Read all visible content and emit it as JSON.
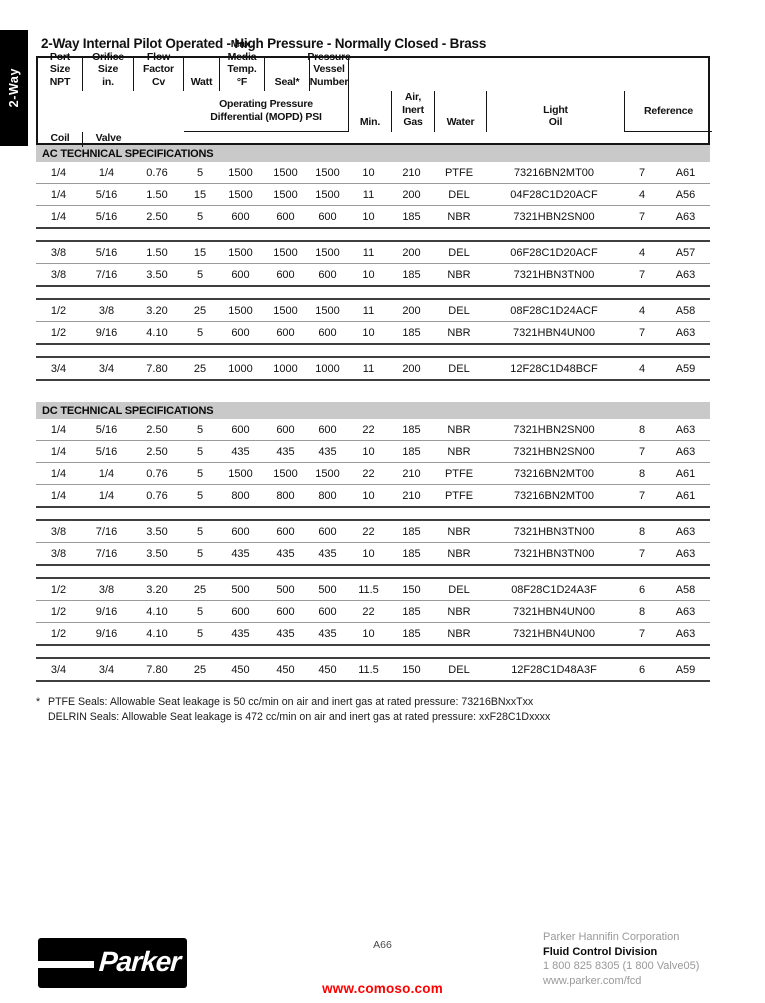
{
  "sidebar": {
    "tab_label": "2-Way"
  },
  "title": "2-Way Internal Pilot Operated - High Pressure - Normally Closed - Brass",
  "table": {
    "headers": {
      "port_size": "Port\nSize\nNPT",
      "orifice_size": "Orifice\nSize\nin.",
      "flow_factor": "Flow\nFactor\nCv",
      "mopd_group": "Operating Pressure\nDifferential (MOPD) PSI",
      "min": "Min.",
      "air_inert_gas": "Air,\nInert\nGas",
      "water": "Water",
      "light_oil": "Light\nOil",
      "watt": "Watt",
      "max_media_temp": "Max.\nMedia\nTemp.\n°F",
      "seal": "Seal*",
      "pressure_vessel_number": "Pressure\nVessel Number",
      "reference_group": "Reference",
      "coil": "Coil",
      "valve": "Valve"
    },
    "sections": [
      {
        "title": "AC TECHNICAL SPECIFICATIONS",
        "groups": [
          [
            [
              "1/4",
              "1/4",
              "0.76",
              "5",
              "1500",
              "1500",
              "1500",
              "10",
              "210",
              "PTFE",
              "73216BN2MT00",
              "7",
              "A61"
            ],
            [
              "1/4",
              "5/16",
              "1.50",
              "15",
              "1500",
              "1500",
              "1500",
              "11",
              "200",
              "DEL",
              "04F28C1D20ACF",
              "4",
              "A56"
            ],
            [
              "1/4",
              "5/16",
              "2.50",
              "5",
              "600",
              "600",
              "600",
              "10",
              "185",
              "NBR",
              "7321HBN2SN00",
              "7",
              "A63"
            ]
          ],
          [
            [
              "3/8",
              "5/16",
              "1.50",
              "15",
              "1500",
              "1500",
              "1500",
              "11",
              "200",
              "DEL",
              "06F28C1D20ACF",
              "4",
              "A57"
            ],
            [
              "3/8",
              "7/16",
              "3.50",
              "5",
              "600",
              "600",
              "600",
              "10",
              "185",
              "NBR",
              "7321HBN3TN00",
              "7",
              "A63"
            ]
          ],
          [
            [
              "1/2",
              "3/8",
              "3.20",
              "25",
              "1500",
              "1500",
              "1500",
              "11",
              "200",
              "DEL",
              "08F28C1D24ACF",
              "4",
              "A58"
            ],
            [
              "1/2",
              "9/16",
              "4.10",
              "5",
              "600",
              "600",
              "600",
              "10",
              "185",
              "NBR",
              "7321HBN4UN00",
              "7",
              "A63"
            ]
          ],
          [
            [
              "3/4",
              "3/4",
              "7.80",
              "25",
              "1000",
              "1000",
              "1000",
              "11",
              "200",
              "DEL",
              "12F28C1D48BCF",
              "4",
              "A59"
            ]
          ]
        ]
      },
      {
        "title": "DC TECHNICAL SPECIFICATIONS",
        "groups": [
          [
            [
              "1/4",
              "5/16",
              "2.50",
              "5",
              "600",
              "600",
              "600",
              "22",
              "185",
              "NBR",
              "7321HBN2SN00",
              "8",
              "A63"
            ],
            [
              "1/4",
              "5/16",
              "2.50",
              "5",
              "435",
              "435",
              "435",
              "10",
              "185",
              "NBR",
              "7321HBN2SN00",
              "7",
              "A63"
            ],
            [
              "1/4",
              "1/4",
              "0.76",
              "5",
              "1500",
              "1500",
              "1500",
              "22",
              "210",
              "PTFE",
              "73216BN2MT00",
              "8",
              "A61"
            ],
            [
              "1/4",
              "1/4",
              "0.76",
              "5",
              "800",
              "800",
              "800",
              "10",
              "210",
              "PTFE",
              "73216BN2MT00",
              "7",
              "A61"
            ]
          ],
          [
            [
              "3/8",
              "7/16",
              "3.50",
              "5",
              "600",
              "600",
              "600",
              "22",
              "185",
              "NBR",
              "7321HBN3TN00",
              "8",
              "A63"
            ],
            [
              "3/8",
              "7/16",
              "3.50",
              "5",
              "435",
              "435",
              "435",
              "10",
              "185",
              "NBR",
              "7321HBN3TN00",
              "7",
              "A63"
            ]
          ],
          [
            [
              "1/2",
              "3/8",
              "3.20",
              "25",
              "500",
              "500",
              "500",
              "11.5",
              "150",
              "DEL",
              "08F28C1D24A3F",
              "6",
              "A58"
            ],
            [
              "1/2",
              "9/16",
              "4.10",
              "5",
              "600",
              "600",
              "600",
              "22",
              "185",
              "NBR",
              "7321HBN4UN00",
              "8",
              "A63"
            ],
            [
              "1/2",
              "9/16",
              "4.10",
              "5",
              "435",
              "435",
              "435",
              "10",
              "185",
              "NBR",
              "7321HBN4UN00",
              "7",
              "A63"
            ]
          ],
          [
            [
              "3/4",
              "3/4",
              "7.80",
              "25",
              "450",
              "450",
              "450",
              "11.5",
              "150",
              "DEL",
              "12F28C1D48A3F",
              "6",
              "A59"
            ]
          ]
        ]
      }
    ]
  },
  "footnotes": {
    "marker": "*",
    "lines": [
      "PTFE Seals: Allowable Seat leakage is 50 cc/min on air and inert gas at rated pressure: 73216BNxxTxx",
      "DELRIN Seals: Allowable Seat leakage is 472 cc/min on air and inert gas at rated pressure: xxF28C1Dxxxx"
    ]
  },
  "footer": {
    "logo_text": "Parker",
    "page_number": "A66",
    "company": "Parker Hannifin Corporation",
    "division": "Fluid Control Division",
    "phone": "1 800 825 8305 (1 800 Valve05)",
    "website": "www.parker.com/fcd",
    "watermark": "www.comoso.com"
  },
  "colors": {
    "section_bar": "#c9c9c9",
    "watermark_red": "#ff0000",
    "footer_gray": "#999999",
    "tab_black": "#000000"
  }
}
